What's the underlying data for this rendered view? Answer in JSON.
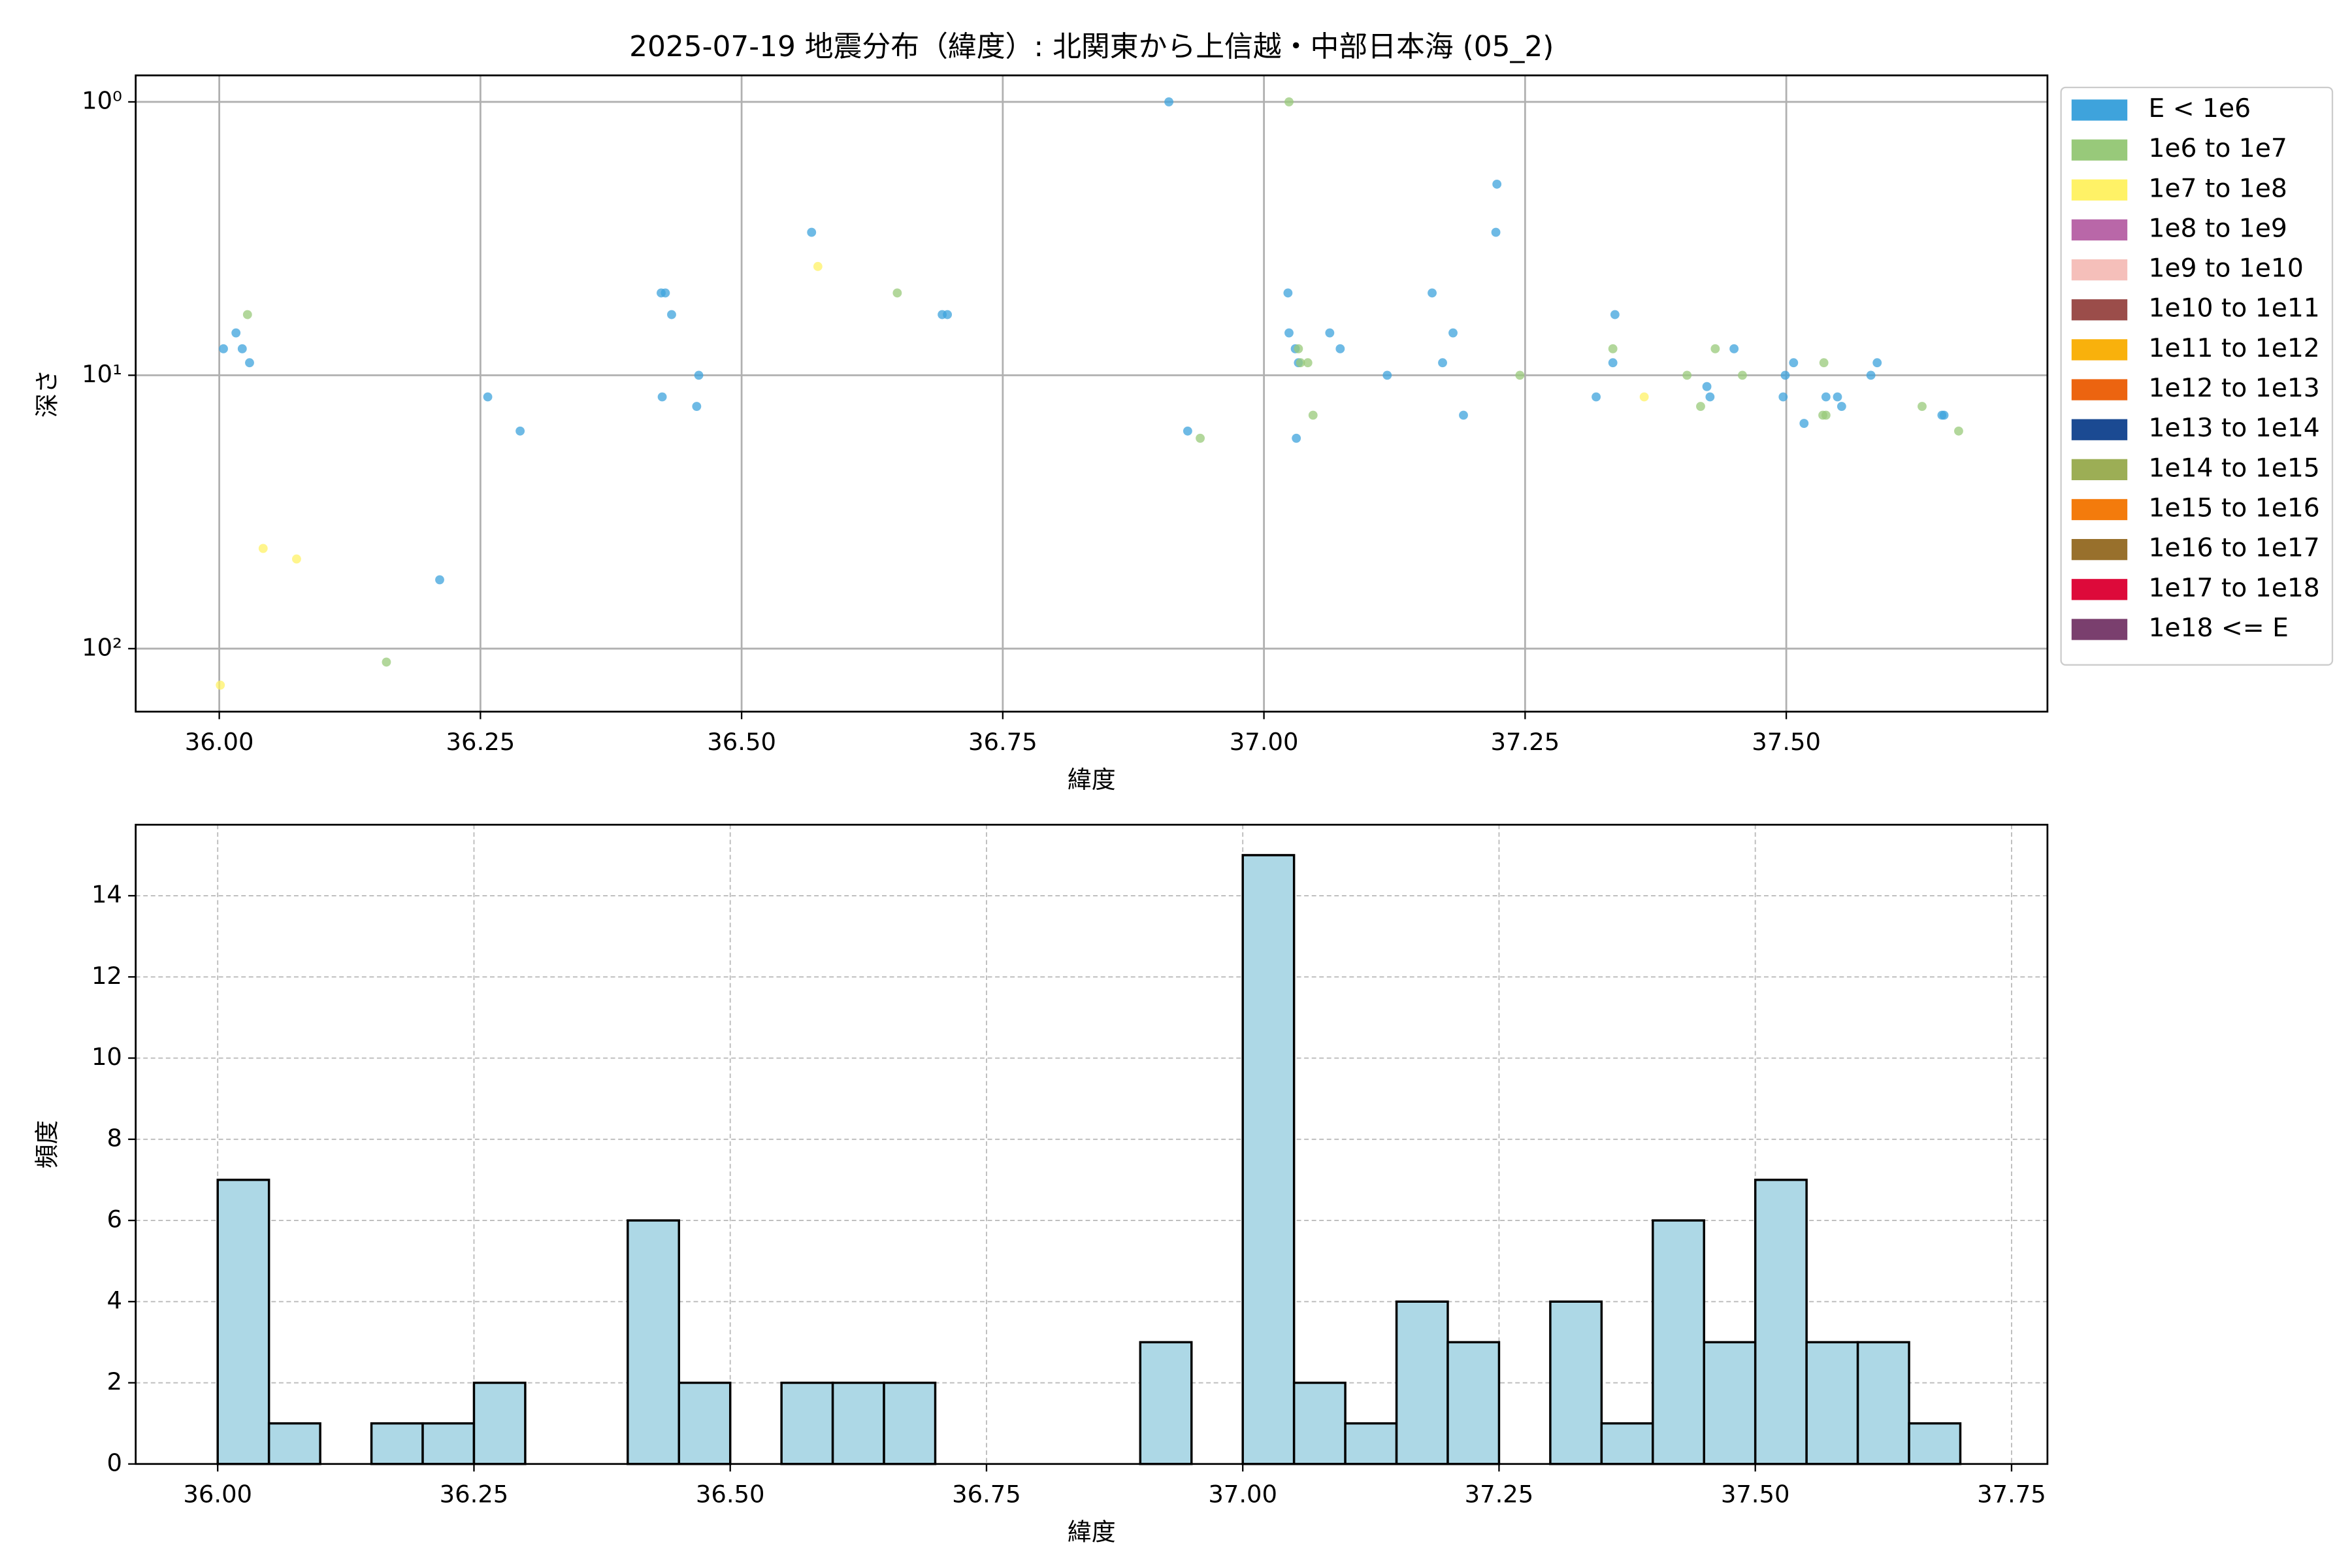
{
  "chart_data": [
    {
      "type": "scatter",
      "title": "2025-07-19 地震分布（緯度）: 北関東から上信越・中部日本海 (05_2)",
      "x_label": "緯度",
      "y_label": "深さ",
      "xlim": [
        35.92,
        37.75
      ],
      "ylim": [
        0.8,
        170
      ],
      "y_log": true,
      "y_inverted": true,
      "grid": true,
      "xticks": [
        {
          "value": 36.0,
          "label": "36.00"
        },
        {
          "value": 36.25,
          "label": "36.25"
        },
        {
          "value": 36.5,
          "label": "36.50"
        },
        {
          "value": 36.75,
          "label": "36.75"
        },
        {
          "value": 37.0,
          "label": "37.00"
        },
        {
          "value": 37.25,
          "label": "37.25"
        },
        {
          "value": 37.5,
          "label": "37.50"
        }
      ],
      "yticks": [
        {
          "value": 1,
          "label": "10⁰"
        },
        {
          "value": 10,
          "label": "10¹"
        },
        {
          "value": 100,
          "label": "10²"
        }
      ],
      "legend": "outside upper right",
      "series": [
        {
          "name": "E < 1e6",
          "color": "#3ea3dc",
          "x": [
            36.004,
            36.016,
            36.022,
            36.029,
            36.211,
            36.257,
            36.288,
            36.423,
            36.427,
            36.433,
            36.424,
            36.459,
            36.457,
            36.567,
            36.692,
            36.697,
            36.909,
            36.927,
            37.023,
            37.024,
            37.03,
            37.033,
            37.031,
            37.063,
            37.073,
            37.118,
            37.161,
            37.171,
            37.181,
            37.191,
            37.223,
            37.222,
            37.318,
            37.334,
            37.336,
            37.424,
            37.427,
            37.45,
            37.499,
            37.497,
            37.507,
            37.517,
            37.538,
            37.549,
            37.553,
            37.581,
            37.587,
            37.649,
            37.651
          ],
          "values": [
            8,
            7,
            8,
            9,
            56,
            12,
            16,
            5,
            5,
            6,
            12,
            10,
            13,
            3,
            6,
            6,
            1,
            16,
            5,
            7,
            8,
            9,
            17,
            7,
            8,
            10,
            5,
            9,
            7,
            14,
            2,
            3,
            12,
            9,
            6,
            11,
            12,
            8,
            10,
            12,
            9,
            15,
            12,
            12,
            13,
            10,
            9,
            14,
            14
          ]
        },
        {
          "name": "1e6 to 1e7",
          "color": "#98c97a",
          "x": [
            36.027,
            36.16,
            36.649,
            36.939,
            37.024,
            37.033,
            37.035,
            37.042,
            37.047,
            37.245,
            37.334,
            37.405,
            37.418,
            37.432,
            37.458,
            37.536,
            37.538,
            37.535,
            37.63,
            37.665
          ],
          "values": [
            6,
            112,
            5,
            17,
            1,
            8,
            9,
            9,
            14,
            10,
            8,
            10,
            13,
            8,
            10,
            9,
            14,
            14,
            13,
            16
          ]
        },
        {
          "name": "1e7 to 1e8",
          "color": "#fff266",
          "x": [
            36.001,
            36.042,
            36.074,
            36.573,
            37.364
          ],
          "values": [
            136,
            43,
            47,
            4,
            12
          ]
        },
        {
          "name": "1e8 to 1e9",
          "color": "#b967a8",
          "x": [],
          "values": []
        },
        {
          "name": "1e9 to 1e10",
          "color": "#f5bfba",
          "x": [],
          "values": []
        },
        {
          "name": "1e10 to 1e11",
          "color": "#9b4d4a",
          "x": [],
          "values": []
        },
        {
          "name": "1e11 to 1e12",
          "color": "#f9b10c",
          "x": [],
          "values": []
        },
        {
          "name": "1e12 to 1e13",
          "color": "#ec6410",
          "x": [],
          "values": []
        },
        {
          "name": "1e13 to 1e14",
          "color": "#1b4a92",
          "x": [],
          "values": []
        },
        {
          "name": "1e14 to 1e15",
          "color": "#9cae55",
          "x": [],
          "values": []
        },
        {
          "name": "1e15 to 1e16",
          "color": "#f37b0c",
          "x": [],
          "values": []
        },
        {
          "name": "1e16 to 1e17",
          "color": "#98702c",
          "x": [],
          "values": []
        },
        {
          "name": "1e17 to 1e18",
          "color": "#dd0a3a",
          "x": [],
          "values": []
        },
        {
          "name": "1e18 <= E",
          "color": "#7a3f6e",
          "x": [],
          "values": []
        }
      ]
    },
    {
      "type": "histogram",
      "x_label": "緯度",
      "y_label": "頻度",
      "xlim": [
        35.92,
        37.785
      ],
      "ylim": [
        0,
        15.75
      ],
      "grid": true,
      "color": "#add8e6",
      "edgecolor": "#000000",
      "xticks": [
        {
          "value": 36.0,
          "label": "36.00"
        },
        {
          "value": 36.25,
          "label": "36.25"
        },
        {
          "value": 36.5,
          "label": "36.50"
        },
        {
          "value": 36.75,
          "label": "36.75"
        },
        {
          "value": 37.0,
          "label": "37.00"
        },
        {
          "value": 37.25,
          "label": "37.25"
        },
        {
          "value": 37.5,
          "label": "37.50"
        },
        {
          "value": 37.75,
          "label": "37.75"
        }
      ],
      "yticks": [
        0,
        2,
        4,
        6,
        8,
        10,
        12,
        14
      ],
      "bins": [
        36.0,
        36.05,
        36.1,
        36.15,
        36.2,
        36.25,
        36.3,
        36.35,
        36.4,
        36.45,
        36.5,
        36.55,
        36.6,
        36.65,
        36.7,
        36.75,
        36.8,
        36.85,
        36.9,
        36.95,
        37.0,
        37.05,
        37.1,
        37.15,
        37.2,
        37.25,
        37.3,
        37.35,
        37.4,
        37.45,
        37.5,
        37.55,
        37.6,
        37.65,
        37.7
      ],
      "values": [
        7,
        1,
        0,
        1,
        1,
        2,
        0,
        0,
        6,
        2,
        0,
        2,
        2,
        2,
        0,
        0,
        0,
        0,
        3,
        0,
        15,
        2,
        1,
        4,
        3,
        0,
        4,
        1,
        6,
        3,
        7,
        3,
        3,
        1
      ]
    }
  ]
}
